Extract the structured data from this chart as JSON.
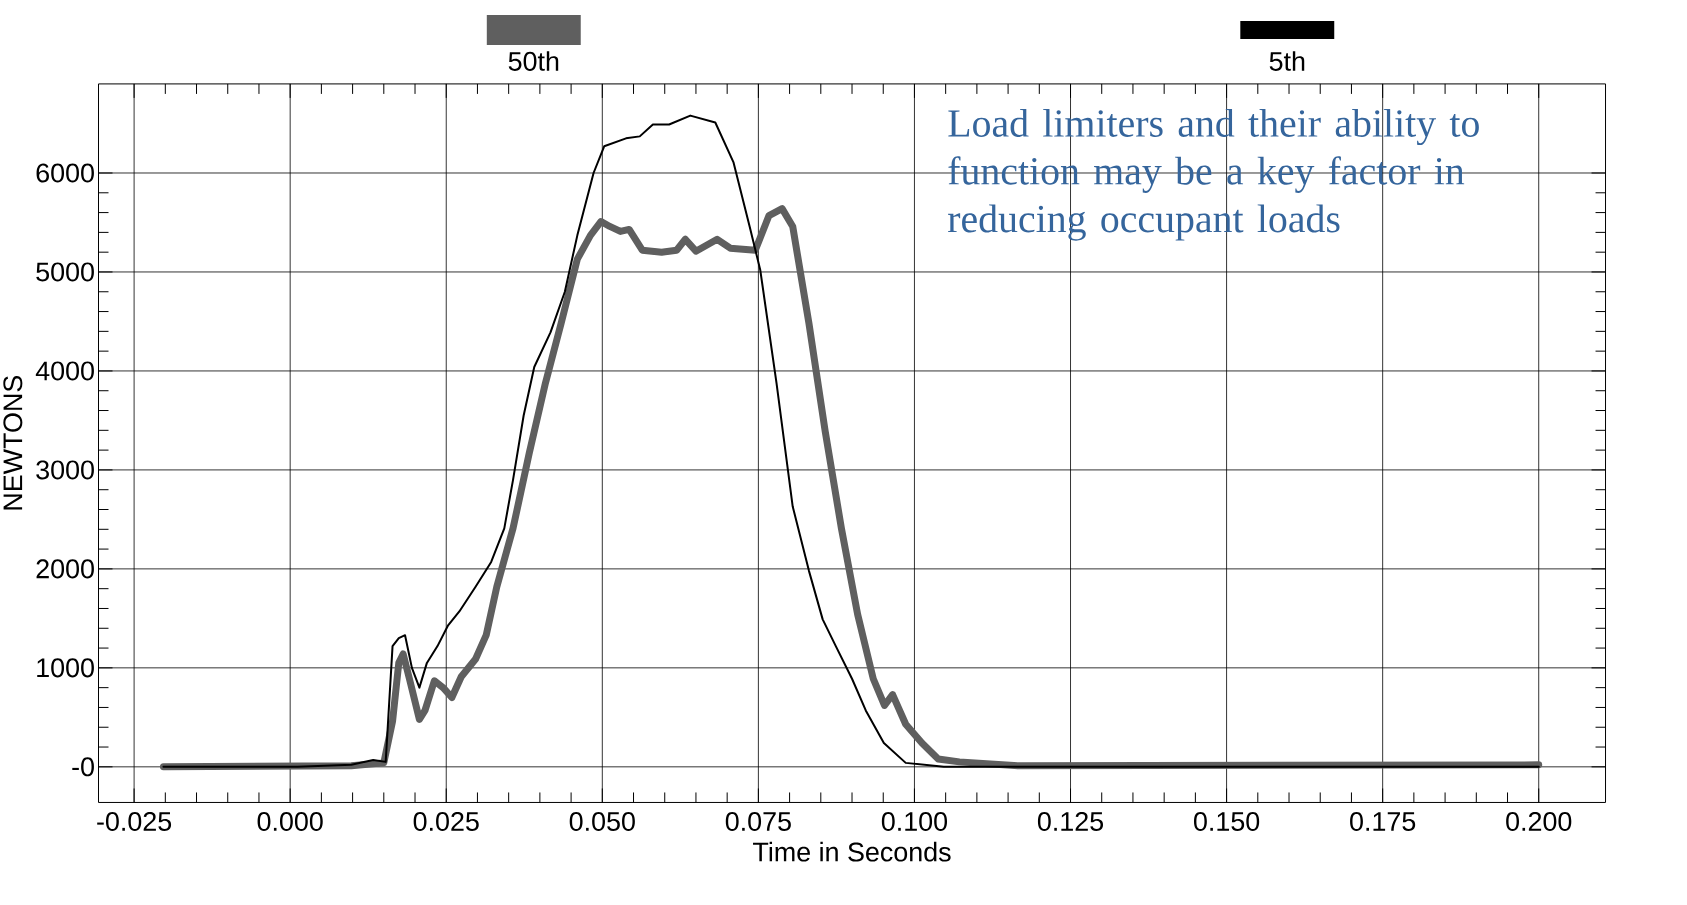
{
  "chart_data": {
    "type": "line",
    "xlabel": "Time in Seconds",
    "ylabel": "NEWTONS",
    "xlim": [
      -0.0307,
      0.2107
    ],
    "ylim": [
      -360,
      6900
    ],
    "xticks": [
      {
        "value": -0.025,
        "label": "-0.025"
      },
      {
        "value": 0,
        "label": "0.000"
      },
      {
        "value": 0.025,
        "label": "0.025"
      },
      {
        "value": 0.05,
        "label": "0.050"
      },
      {
        "value": 0.075,
        "label": "0.075"
      },
      {
        "value": 0.1,
        "label": "0.100"
      },
      {
        "value": 0.125,
        "label": "0.125"
      },
      {
        "value": 0.15,
        "label": "0.150"
      },
      {
        "value": 0.175,
        "label": "0.175"
      },
      {
        "value": 0.2,
        "label": "0.200"
      }
    ],
    "yticks": [
      {
        "value": 0,
        "label": "-0"
      },
      1000,
      2000,
      3000,
      4000,
      5000,
      6000
    ],
    "grid": true,
    "legend": "top",
    "marker": "none",
    "line_style": "solid",
    "annotations": [
      "Load limiters and their ability to function may be a key factor in reducing occupant loads"
    ],
    "series": [
      {
        "name": "50th",
        "color": "#5f5f5f",
        "x": [
          -0.0203,
          0.0098,
          0.015,
          0.0164,
          0.0174,
          0.0181,
          0.0191,
          0.0207,
          0.0216,
          0.0231,
          0.0245,
          0.0259,
          0.0274,
          0.0297,
          0.0314,
          0.0331,
          0.0357,
          0.0383,
          0.0409,
          0.0434,
          0.046,
          0.0481,
          0.0498,
          0.0512,
          0.0529,
          0.0543,
          0.0564,
          0.0595,
          0.0619,
          0.0633,
          0.065,
          0.0684,
          0.0705,
          0.0745,
          0.0767,
          0.0788,
          0.0805,
          0.0831,
          0.0857,
          0.0883,
          0.0909,
          0.0934,
          0.0952,
          0.0965,
          0.0986,
          0.1012,
          0.1038,
          0.1072,
          0.1167,
          0.2
        ],
        "values": [
          0,
          10,
          40,
          460,
          1050,
          1140,
          890,
          480,
          570,
          870,
          800,
          700,
          910,
          1090,
          1330,
          1820,
          2410,
          3170,
          3880,
          4480,
          5130,
          5370,
          5510,
          5460,
          5410,
          5430,
          5220,
          5200,
          5220,
          5330,
          5210,
          5330,
          5240,
          5220,
          5570,
          5640,
          5460,
          4480,
          3390,
          2410,
          1540,
          890,
          620,
          730,
          430,
          240,
          80,
          50,
          10,
          20
        ]
      },
      {
        "name": "5th",
        "color": "#000000",
        "x": [
          -0.0203,
          0.0012,
          0.0098,
          0.0133,
          0.0153,
          0.0164,
          0.0174,
          0.0184,
          0.0195,
          0.0207,
          0.0219,
          0.0236,
          0.0253,
          0.0271,
          0.0297,
          0.0322,
          0.0343,
          0.0357,
          0.0374,
          0.0391,
          0.0417,
          0.044,
          0.046,
          0.0486,
          0.0503,
          0.0538,
          0.056,
          0.0581,
          0.0607,
          0.0641,
          0.0681,
          0.071,
          0.0736,
          0.0753,
          0.0779,
          0.0805,
          0.0831,
          0.0853,
          0.0874,
          0.09,
          0.0922,
          0.0951,
          0.0986,
          0.1047,
          0.1167,
          0.2
        ],
        "values": [
          0,
          0,
          20,
          70,
          50,
          1220,
          1300,
          1330,
          1000,
          800,
          1050,
          1220,
          1430,
          1570,
          1820,
          2070,
          2410,
          2900,
          3550,
          4040,
          4390,
          4800,
          5370,
          6000,
          6270,
          6350,
          6370,
          6490,
          6490,
          6580,
          6510,
          6110,
          5460,
          5020,
          3880,
          2630,
          1980,
          1490,
          1220,
          890,
          570,
          240,
          40,
          0,
          0,
          0
        ]
      }
    ]
  }
}
